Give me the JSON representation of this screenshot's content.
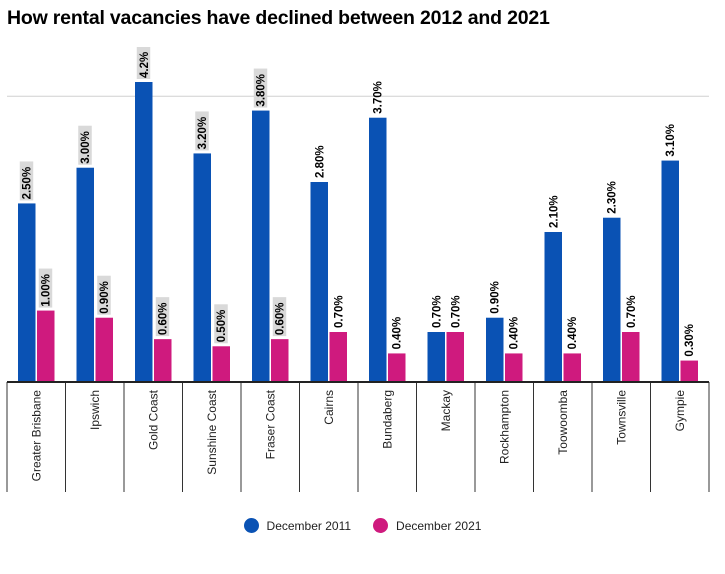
{
  "title": "How rental vacancies have declined between 2012 and 2021",
  "colors": {
    "series1": "#0a52b4",
    "series2": "#cf1a7e",
    "label_bg": "#d9d9d9"
  },
  "chart_data": {
    "type": "bar",
    "title": "How rental vacancies have declined between 2012 and 2021",
    "categories": [
      "Greater Brisbane",
      "Ipswich",
      "Gold Coast",
      "Sunshine Coast",
      "Fraser Coast",
      "Cairns",
      "Bundaberg",
      "Mackay",
      "Rockhampton",
      "Toowoomba",
      "Townsville",
      "Gympie"
    ],
    "series": [
      {
        "name": "December 2011",
        "values": [
          2.5,
          3.0,
          4.2,
          3.2,
          3.8,
          2.8,
          3.7,
          0.7,
          0.9,
          2.1,
          2.3,
          3.1
        ],
        "labels": [
          "2.50%",
          "3.00%",
          "4.2%",
          "3.20%",
          "3.80%",
          "2.80%",
          "3.70%",
          "0.70%",
          "0.90%",
          "2.10%",
          "2.30%",
          "3.10%"
        ],
        "label_highlight": [
          true,
          true,
          true,
          true,
          true,
          false,
          false,
          false,
          false,
          false,
          false,
          false
        ]
      },
      {
        "name": "December 2021",
        "values": [
          1.0,
          0.9,
          0.6,
          0.5,
          0.6,
          0.7,
          0.4,
          0.7,
          0.4,
          0.4,
          0.7,
          0.3
        ],
        "labels": [
          "1.00%",
          "0.90%",
          "0.60%",
          "0.50%",
          "0.60%",
          "0.70%",
          "0.40%",
          "0.70%",
          "0.40%",
          "0.40%",
          "0.70%",
          "0.30%"
        ],
        "label_highlight": [
          true,
          true,
          true,
          true,
          true,
          false,
          false,
          false,
          false,
          false,
          false,
          false
        ]
      }
    ],
    "ylim": [
      0,
      4.2
    ],
    "grid": true,
    "legend": "bottom"
  }
}
